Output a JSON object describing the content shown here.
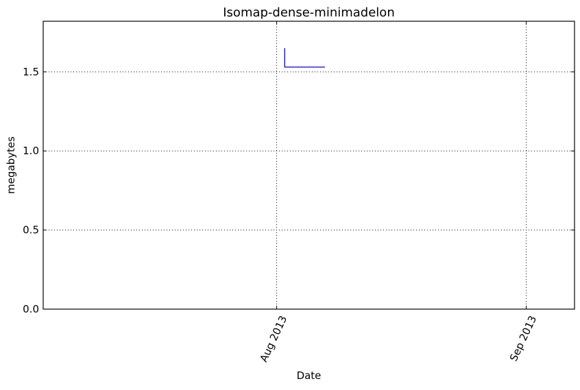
{
  "chart_data": {
    "type": "line",
    "title": "Isomap-dense-minimadelon",
    "xlabel": "Date",
    "ylabel": "megabytes",
    "x_axis_type": "date",
    "xlim": [
      "2013-07-03",
      "2013-09-07"
    ],
    "ylim": [
      0.0,
      1.82
    ],
    "x_ticks": [
      {
        "date": "2013-08-01",
        "label": "Aug 2013"
      },
      {
        "date": "2013-09-01",
        "label": "Sep 2013"
      }
    ],
    "y_ticks": [
      {
        "value": 0.0,
        "label": "0.0"
      },
      {
        "value": 0.5,
        "label": "0.5"
      },
      {
        "value": 1.0,
        "label": "1.0"
      },
      {
        "value": 1.5,
        "label": "1.5"
      }
    ],
    "grid": true,
    "grid_style": "dotted",
    "series": [
      {
        "color": "#0000cc",
        "x": [
          "2013-08-02",
          "2013-08-02",
          "2013-08-07"
        ],
        "y": [
          1.65,
          1.53,
          1.53
        ]
      }
    ]
  }
}
